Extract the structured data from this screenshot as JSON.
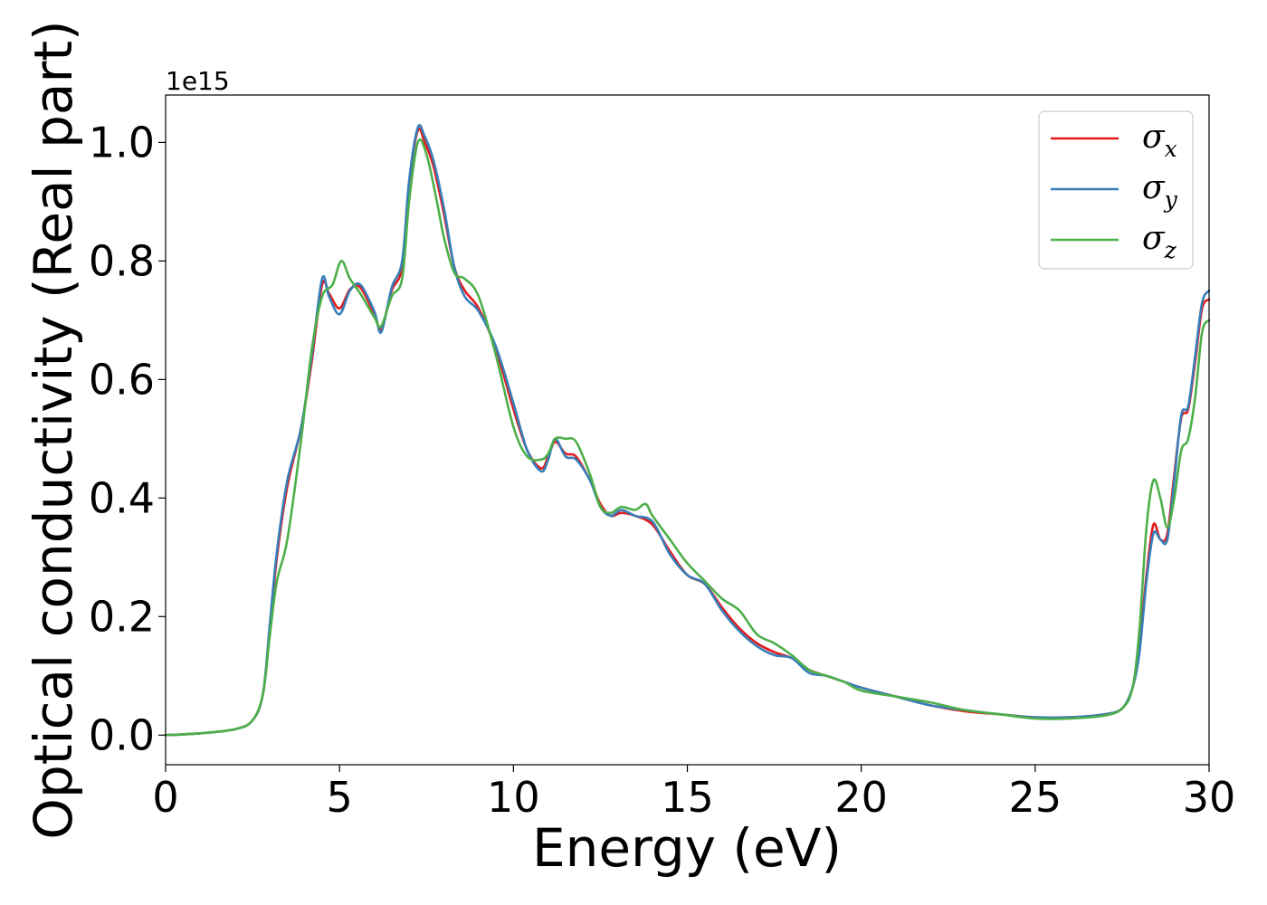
{
  "chart_data": {
    "type": "line",
    "title": "",
    "xlabel": "Energy (eV)",
    "ylabel": "Optical conductivity (Real part)",
    "y_offset_label": "1e15",
    "xlim": [
      0,
      30
    ],
    "ylim": [
      -0.05,
      1.08
    ],
    "x_ticks": [
      0,
      5,
      10,
      15,
      20,
      25,
      30
    ],
    "x_tick_labels": [
      "0",
      "5",
      "10",
      "15",
      "20",
      "25",
      "30"
    ],
    "y_ticks": [
      0.0,
      0.2,
      0.4,
      0.6,
      0.8,
      1.0
    ],
    "y_tick_labels": [
      "0.0",
      "0.2",
      "0.4",
      "0.6",
      "0.8",
      "1.0"
    ],
    "grid": false,
    "legend_position": "top-right",
    "series": [
      {
        "name": "σ",
        "subscript": "x",
        "color": "#e41a1c",
        "x": [
          0,
          1,
          2,
          2.5,
          2.8,
          3.0,
          3.2,
          3.5,
          3.9,
          4.2,
          4.5,
          4.7,
          5.0,
          5.3,
          5.6,
          6.0,
          6.2,
          6.5,
          6.8,
          7.0,
          7.25,
          7.45,
          7.7,
          8.0,
          8.3,
          8.6,
          9.0,
          9.5,
          10.0,
          10.4,
          10.8,
          11.0,
          11.2,
          11.5,
          11.8,
          12.2,
          12.5,
          12.8,
          13.1,
          13.5,
          14.0,
          14.5,
          15.0,
          15.5,
          16.0,
          16.5,
          17.0,
          17.5,
          18.0,
          18.5,
          19.0,
          19.5,
          20.0,
          21.0,
          22.0,
          23.0,
          24.0,
          25.0,
          26.0,
          27.0,
          27.5,
          27.8,
          28.0,
          28.2,
          28.4,
          28.6,
          28.8,
          29.0,
          29.2,
          29.4,
          29.6,
          29.8,
          30.0
        ],
        "y": [
          0.0,
          0.003,
          0.01,
          0.025,
          0.07,
          0.18,
          0.3,
          0.42,
          0.52,
          0.63,
          0.76,
          0.745,
          0.72,
          0.752,
          0.755,
          0.71,
          0.685,
          0.75,
          0.79,
          0.93,
          1.02,
          1.0,
          0.96,
          0.88,
          0.79,
          0.75,
          0.72,
          0.65,
          0.55,
          0.48,
          0.45,
          0.47,
          0.495,
          0.475,
          0.47,
          0.43,
          0.39,
          0.37,
          0.375,
          0.37,
          0.355,
          0.31,
          0.27,
          0.255,
          0.215,
          0.18,
          0.155,
          0.14,
          0.13,
          0.11,
          0.1,
          0.09,
          0.08,
          0.065,
          0.05,
          0.04,
          0.035,
          0.03,
          0.03,
          0.035,
          0.045,
          0.08,
          0.15,
          0.27,
          0.355,
          0.33,
          0.34,
          0.44,
          0.535,
          0.55,
          0.63,
          0.72,
          0.735
        ]
      },
      {
        "name": "σ",
        "subscript": "y",
        "color": "#377eb8",
        "x": [
          0,
          1,
          2,
          2.5,
          2.8,
          3.0,
          3.2,
          3.5,
          3.9,
          4.2,
          4.5,
          4.7,
          5.0,
          5.3,
          5.6,
          6.0,
          6.2,
          6.5,
          6.8,
          7.0,
          7.25,
          7.45,
          7.7,
          8.0,
          8.3,
          8.6,
          9.0,
          9.5,
          10.0,
          10.4,
          10.8,
          11.0,
          11.2,
          11.5,
          11.8,
          12.2,
          12.5,
          12.8,
          13.1,
          13.5,
          14.0,
          14.5,
          15.0,
          15.5,
          16.0,
          16.5,
          17.0,
          17.5,
          18.0,
          18.5,
          19.0,
          19.5,
          20.0,
          21.0,
          22.0,
          23.0,
          24.0,
          25.0,
          26.0,
          27.0,
          27.5,
          27.8,
          28.0,
          28.2,
          28.4,
          28.6,
          28.8,
          29.0,
          29.2,
          29.4,
          29.6,
          29.8,
          30.0
        ],
        "y": [
          0.0,
          0.003,
          0.01,
          0.025,
          0.07,
          0.19,
          0.31,
          0.43,
          0.52,
          0.64,
          0.77,
          0.74,
          0.71,
          0.75,
          0.76,
          0.715,
          0.68,
          0.755,
          0.8,
          0.935,
          1.025,
          1.01,
          0.97,
          0.89,
          0.79,
          0.74,
          0.715,
          0.655,
          0.56,
          0.48,
          0.445,
          0.465,
          0.5,
          0.47,
          0.465,
          0.43,
          0.385,
          0.37,
          0.38,
          0.37,
          0.36,
          0.305,
          0.27,
          0.255,
          0.21,
          0.175,
          0.15,
          0.135,
          0.13,
          0.105,
          0.1,
          0.09,
          0.08,
          0.065,
          0.05,
          0.042,
          0.035,
          0.03,
          0.03,
          0.035,
          0.045,
          0.08,
          0.14,
          0.26,
          0.34,
          0.33,
          0.33,
          0.43,
          0.54,
          0.555,
          0.64,
          0.73,
          0.75
        ]
      },
      {
        "name": "σ",
        "subscript": "z",
        "color": "#4daf4a",
        "x": [
          0,
          1,
          2,
          2.5,
          2.8,
          3.0,
          3.2,
          3.5,
          3.9,
          4.2,
          4.5,
          4.8,
          5.05,
          5.3,
          5.6,
          6.0,
          6.2,
          6.5,
          6.8,
          7.0,
          7.25,
          7.5,
          7.8,
          8.0,
          8.3,
          8.6,
          9.0,
          9.5,
          10.0,
          10.4,
          10.8,
          11.0,
          11.2,
          11.5,
          11.8,
          12.2,
          12.5,
          12.8,
          13.1,
          13.5,
          13.8,
          14.0,
          14.5,
          15.0,
          15.5,
          16.0,
          16.5,
          17.0,
          17.5,
          18.0,
          18.5,
          19.0,
          19.5,
          20.0,
          21.0,
          22.0,
          23.0,
          24.0,
          25.0,
          26.0,
          27.0,
          27.5,
          27.8,
          28.0,
          28.2,
          28.4,
          28.6,
          28.8,
          29.0,
          29.2,
          29.4,
          29.6,
          29.8,
          30.0
        ],
        "y": [
          0.0,
          0.003,
          0.01,
          0.025,
          0.07,
          0.17,
          0.26,
          0.33,
          0.5,
          0.65,
          0.74,
          0.76,
          0.8,
          0.77,
          0.745,
          0.705,
          0.69,
          0.74,
          0.77,
          0.9,
          1.0,
          0.98,
          0.9,
          0.84,
          0.78,
          0.77,
          0.74,
          0.64,
          0.52,
          0.47,
          0.465,
          0.475,
          0.5,
          0.5,
          0.495,
          0.44,
          0.385,
          0.375,
          0.385,
          0.38,
          0.39,
          0.37,
          0.33,
          0.29,
          0.26,
          0.23,
          0.21,
          0.17,
          0.155,
          0.135,
          0.11,
          0.1,
          0.09,
          0.075,
          0.065,
          0.055,
          0.042,
          0.035,
          0.028,
          0.028,
          0.033,
          0.045,
          0.08,
          0.18,
          0.35,
          0.43,
          0.4,
          0.35,
          0.4,
          0.48,
          0.5,
          0.57,
          0.68,
          0.7
        ]
      }
    ]
  }
}
